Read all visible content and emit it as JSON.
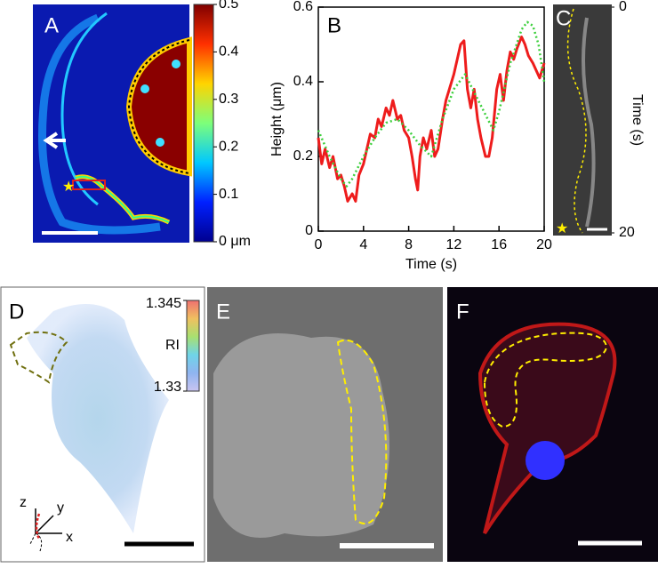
{
  "chart_data": [
    {
      "type": "line",
      "label": "B",
      "xlabel": "Time (s)",
      "ylabel": "Height (μm)",
      "xlim": [
        0,
        20
      ],
      "ylim": [
        0,
        0.6
      ],
      "xticks": [
        0,
        4,
        8,
        12,
        16,
        20
      ],
      "yticks": [
        0,
        0.2,
        0.4,
        0.6
      ],
      "series": [
        {
          "color": "#ee1c1c",
          "line_style": "solid",
          "x": [
            0,
            0.3,
            0.6,
            1,
            1.3,
            1.7,
            2,
            2.3,
            2.6,
            3,
            3.3,
            3.6,
            4,
            4.3,
            4.6,
            5,
            5.3,
            5.6,
            6,
            6.3,
            6.6,
            7,
            7.3,
            7.6,
            8,
            8.3,
            8.6,
            8.8,
            9,
            9.3,
            9.6,
            10,
            10.3,
            10.6,
            11,
            11.3,
            11.6,
            12,
            12.3,
            12.6,
            12.9,
            13.2,
            13.5,
            13.8,
            14.1,
            14.4,
            14.8,
            15.1,
            15.4,
            15.8,
            16.1,
            16.4,
            16.7,
            17,
            17.3,
            17.6,
            18,
            18.3,
            18.6,
            19,
            19.3,
            19.6,
            20
          ],
          "values": [
            0.25,
            0.18,
            0.22,
            0.17,
            0.2,
            0.14,
            0.15,
            0.12,
            0.08,
            0.1,
            0.08,
            0.15,
            0.18,
            0.22,
            0.26,
            0.25,
            0.3,
            0.28,
            0.33,
            0.31,
            0.35,
            0.3,
            0.31,
            0.27,
            0.25,
            0.2,
            0.14,
            0.11,
            0.2,
            0.25,
            0.22,
            0.27,
            0.2,
            0.22,
            0.3,
            0.35,
            0.38,
            0.42,
            0.46,
            0.5,
            0.51,
            0.38,
            0.33,
            0.38,
            0.3,
            0.25,
            0.2,
            0.2,
            0.25,
            0.38,
            0.42,
            0.35,
            0.43,
            0.48,
            0.46,
            0.49,
            0.52,
            0.5,
            0.47,
            0.45,
            0.43,
            0.41,
            0.45
          ]
        },
        {
          "color": "#3ccf3c",
          "line_style": "dotted",
          "x": [
            0,
            1,
            2,
            2.5,
            3,
            4,
            5,
            6,
            7,
            8,
            9,
            10,
            11,
            12,
            13,
            14,
            15,
            15.5,
            16,
            17,
            18,
            18.5,
            19,
            19.5,
            20
          ],
          "values": [
            0.27,
            0.2,
            0.14,
            0.12,
            0.14,
            0.2,
            0.25,
            0.29,
            0.3,
            0.27,
            0.23,
            0.2,
            0.3,
            0.38,
            0.42,
            0.36,
            0.3,
            0.27,
            0.32,
            0.45,
            0.54,
            0.56,
            0.55,
            0.5,
            0.4
          ]
        }
      ]
    },
    {
      "type": "colorbar",
      "label": "A",
      "ylim": [
        0,
        0.5
      ],
      "yticks": [
        {
          "value": 0,
          "label": "0 μm"
        },
        0.1,
        0.2,
        0.3,
        0.4,
        0.5
      ],
      "colors": [
        "#00008f",
        "#0020ff",
        "#00c8ff",
        "#7dff7a",
        "#ffd400",
        "#ff3000",
        "#800000"
      ]
    },
    {
      "type": "axis",
      "label": "C",
      "ylabel": "Time (s)",
      "ylim": [
        0,
        20
      ],
      "yticks": [
        0,
        20
      ],
      "y_inverted": true
    },
    {
      "type": "colorbar",
      "label": "D",
      "ylabel": "RI",
      "ylim": [
        1.33,
        1.345
      ],
      "yticks": [
        1.33,
        1.345
      ],
      "colors": [
        "#c9c4f0",
        "#8fb4f0",
        "#6fd4e8",
        "#a8e070",
        "#f0c060",
        "#f07070"
      ]
    }
  ],
  "panel_labels": [
    "E",
    "F"
  ],
  "axes_3d": [
    "z",
    "y",
    "x"
  ]
}
